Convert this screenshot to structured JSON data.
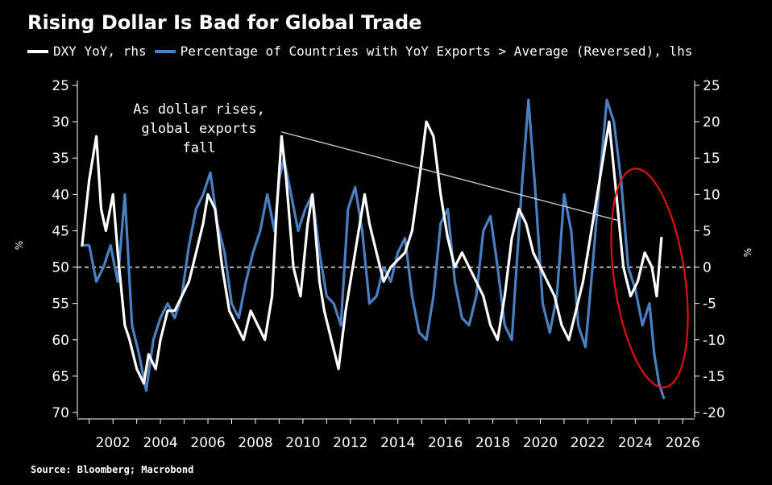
{
  "chart_data": {
    "type": "line",
    "title": "Rising Dollar Is Bad for Global Trade",
    "source": "Source: Bloomberg; Macrobond",
    "left_axis": {
      "unit": "%",
      "reversed": true,
      "ylim": [
        25,
        70
      ],
      "ticks": [
        "25",
        "30",
        "35",
        "40",
        "45",
        "50",
        "55",
        "60",
        "65",
        "70"
      ]
    },
    "right_axis": {
      "unit": "%",
      "ylim": [
        -20,
        25
      ],
      "ticks": [
        "25",
        "20",
        "15",
        "10",
        "5",
        "0",
        "-5",
        "-10",
        "-15",
        "-20"
      ]
    },
    "xlim": [
      2000.5,
      2026.5
    ],
    "x_ticks": [
      "2002",
      "2004",
      "2006",
      "2008",
      "2010",
      "2012",
      "2014",
      "2016",
      "2018",
      "2020",
      "2022",
      "2024",
      "2026"
    ],
    "zero_line": "dashed",
    "legend_placement": "top",
    "series": [
      {
        "name": "DXY YoY, rhs",
        "axis": "right",
        "color": "#ffffff",
        "x": [
          2000.7,
          2001.0,
          2001.3,
          2001.5,
          2001.7,
          2002.0,
          2002.2,
          2002.5,
          2002.7,
          2003.0,
          2003.3,
          2003.5,
          2003.8,
          2004.0,
          2004.3,
          2004.6,
          2004.9,
          2005.2,
          2005.5,
          2005.8,
          2006.0,
          2006.3,
          2006.6,
          2006.9,
          2007.2,
          2007.5,
          2007.8,
          2008.1,
          2008.4,
          2008.7,
          2008.9,
          2009.1,
          2009.3,
          2009.6,
          2009.9,
          2010.2,
          2010.4,
          2010.7,
          2010.9,
          2011.2,
          2011.5,
          2011.8,
          2012.0,
          2012.3,
          2012.6,
          2012.8,
          2013.1,
          2013.4,
          2013.7,
          2014.0,
          2014.3,
          2014.6,
          2014.9,
          2015.2,
          2015.5,
          2015.8,
          2016.1,
          2016.4,
          2016.7,
          2017.0,
          2017.3,
          2017.6,
          2017.9,
          2018.2,
          2018.5,
          2018.8,
          2019.1,
          2019.4,
          2019.7,
          2020.0,
          2020.3,
          2020.6,
          2020.9,
          2021.2,
          2021.5,
          2021.8,
          2022.1,
          2022.4,
          2022.7,
          2022.9,
          2023.2,
          2023.5,
          2023.8,
          2024.1,
          2024.4,
          2024.7,
          2024.9,
          2025.1
        ],
        "y": [
          3,
          12,
          18,
          8,
          5,
          10,
          2,
          -8,
          -10,
          -14,
          -16,
          -12,
          -14,
          -10,
          -6,
          -6,
          -4,
          -2,
          2,
          6,
          10,
          8,
          0,
          -6,
          -8,
          -10,
          -6,
          -8,
          -10,
          -4,
          8,
          18,
          12,
          0,
          -4,
          6,
          10,
          -2,
          -6,
          -10,
          -14,
          -6,
          -2,
          4,
          10,
          6,
          2,
          -2,
          0,
          1,
          2,
          5,
          12,
          20,
          18,
          10,
          4,
          0,
          2,
          0,
          -2,
          -4,
          -8,
          -10,
          -4,
          4,
          8,
          6,
          2,
          0,
          -2,
          -4,
          -8,
          -10,
          -6,
          -2,
          4,
          10,
          16,
          20,
          10,
          0,
          -4,
          -2,
          2,
          0,
          -4,
          4
        ]
      },
      {
        "name": "Percentage of Countries with YoY Exports > Average (Reversed), lhs",
        "axis": "left",
        "color": "#4a7fc1",
        "x": [
          2000.7,
          2001.0,
          2001.3,
          2001.6,
          2001.9,
          2002.2,
          2002.5,
          2002.8,
          2003.1,
          2003.4,
          2003.7,
          2004.0,
          2004.3,
          2004.6,
          2004.9,
          2005.2,
          2005.5,
          2005.8,
          2006.1,
          2006.4,
          2006.7,
          2007.0,
          2007.3,
          2007.6,
          2007.9,
          2008.2,
          2008.5,
          2008.8,
          2009.0,
          2009.2,
          2009.5,
          2009.8,
          2010.1,
          2010.4,
          2010.7,
          2011.0,
          2011.3,
          2011.6,
          2011.9,
          2012.2,
          2012.5,
          2012.8,
          2013.1,
          2013.4,
          2013.7,
          2014.0,
          2014.3,
          2014.6,
          2014.9,
          2015.2,
          2015.5,
          2015.8,
          2016.1,
          2016.4,
          2016.7,
          2017.0,
          2017.3,
          2017.6,
          2017.9,
          2018.2,
          2018.5,
          2018.8,
          2019.0,
          2019.2,
          2019.5,
          2019.8,
          2020.1,
          2020.4,
          2020.7,
          2021.0,
          2021.3,
          2021.6,
          2021.9,
          2022.2,
          2022.5,
          2022.8,
          2023.1,
          2023.4,
          2023.7,
          2024.0,
          2024.3,
          2024.6,
          2024.8,
          2025.0,
          2025.2
        ],
        "y": [
          47,
          47,
          52,
          50,
          47,
          52,
          40,
          58,
          62,
          67,
          60,
          57,
          55,
          57,
          54,
          47,
          42,
          40,
          37,
          44,
          48,
          55,
          57,
          52,
          48,
          45,
          40,
          45,
          38,
          35,
          40,
          45,
          42,
          40,
          48,
          54,
          55,
          58,
          42,
          39,
          45,
          55,
          54,
          50,
          52,
          48,
          46,
          54,
          59,
          60,
          54,
          44,
          42,
          52,
          57,
          58,
          54,
          45,
          43,
          50,
          58,
          60,
          50,
          40,
          27,
          40,
          55,
          59,
          54,
          40,
          45,
          58,
          61,
          50,
          38,
          27,
          30,
          38,
          50,
          53,
          58,
          55,
          62,
          66,
          68
        ]
      }
    ],
    "annotations": [
      {
        "text_lines": [
          "As dollar rises,",
          "global exports",
          "fall"
        ]
      }
    ]
  }
}
